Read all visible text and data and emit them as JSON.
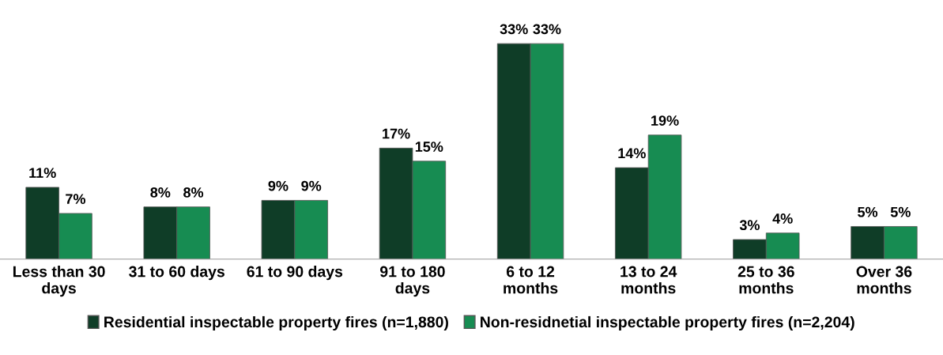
{
  "chart_data": {
    "type": "bar",
    "categories": [
      "Less than 30\ndays",
      "31 to 60 days",
      "61 to 90 days",
      "91 to 180\ndays",
      "6 to 12\nmonths",
      "13 to 24\nmonths",
      "25 to 36\nmonths",
      "Over 36\nmonths"
    ],
    "series": [
      {
        "name": "Residential inspectable property fires (n=1,880)",
        "color": "#0f3d27",
        "values": [
          11,
          8,
          9,
          17,
          33,
          14,
          3,
          5
        ],
        "value_labels": [
          "11%",
          "8%",
          "9%",
          "17%",
          "33%",
          "14%",
          "3%",
          "5%"
        ]
      },
      {
        "name": "Non-residnetial inspectable property fires (n=2,204)",
        "color": "#178c52",
        "values": [
          7,
          8,
          9,
          15,
          33,
          19,
          4,
          5
        ],
        "value_labels": [
          "7%",
          "8%",
          "9%",
          "15%",
          "33%",
          "19%",
          "4%",
          "5%"
        ]
      }
    ],
    "legend": "bottom",
    "grid": false
  }
}
